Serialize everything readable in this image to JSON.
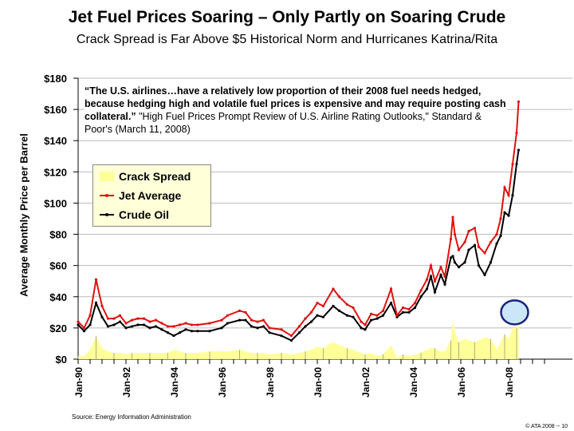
{
  "title": "Jet Fuel Prices Soaring – Only Partly on Soaring Crude",
  "subtitle": "Crack Spread is Far Above $5 Historical Norm and Hurricanes Katrina/Rita",
  "quote_bold": "“The U.S. airlines…have a relatively low proportion of their 2008 fuel needs hedged, because hedging high and volatile fuel prices is expensive and may require posting cash collateral.”",
  "quote_citation": " \"High Fuel Prices Prompt Review of U.S. Airline Rating Outlooks,\" Standard & Poor's (March 11, 2008)",
  "source": "Source: Energy Information Administration",
  "copyright": "© ATA 2008 -- 10",
  "colors": {
    "jet": "#e01010",
    "crude": "#000000",
    "crack": "#ffff99",
    "highlight": "#1a237e"
  },
  "chart_data": {
    "type": "line",
    "ylabel": "Average Monthly Price per Barrel",
    "ylim": [
      0,
      180
    ],
    "yticks": [
      "$0",
      "$20",
      "$40",
      "$60",
      "$80",
      "$100",
      "$120",
      "$140",
      "$160",
      "$180"
    ],
    "xticks": [
      "Jan-90",
      "Jan-92",
      "Jan-94",
      "Jan-96",
      "Jan-98",
      "Jan-00",
      "Jan-02",
      "Jan-04",
      "Jan-06",
      "Jan-08"
    ],
    "grid": true,
    "legend_placement": "upper-left",
    "legend": [
      "Crack Spread",
      "Jet Average",
      "Crude Oil"
    ],
    "x": [
      "1990-01",
      "1990-04",
      "1990-07",
      "1990-10",
      "1991-01",
      "1991-04",
      "1991-07",
      "1991-10",
      "1992-01",
      "1992-04",
      "1992-07",
      "1992-10",
      "1993-01",
      "1993-04",
      "1993-07",
      "1993-10",
      "1994-01",
      "1994-04",
      "1994-07",
      "1994-10",
      "1995-01",
      "1995-07",
      "1996-01",
      "1996-04",
      "1996-10",
      "1997-01",
      "1997-04",
      "1997-07",
      "1997-10",
      "1998-01",
      "1998-07",
      "1998-12",
      "1999-04",
      "1999-07",
      "1999-10",
      "2000-01",
      "2000-04",
      "2000-09",
      "2000-12",
      "2001-04",
      "2001-07",
      "2001-11",
      "2002-01",
      "2002-04",
      "2002-07",
      "2002-10",
      "2003-02",
      "2003-05",
      "2003-08",
      "2003-11",
      "2004-02",
      "2004-05",
      "2004-08",
      "2004-10",
      "2004-12",
      "2005-03",
      "2005-05",
      "2005-08",
      "2005-09",
      "2005-10",
      "2005-12",
      "2006-03",
      "2006-05",
      "2006-08",
      "2006-10",
      "2007-01",
      "2007-04",
      "2007-07",
      "2007-09",
      "2007-11",
      "2008-01",
      "2008-03",
      "2008-05",
      "2008-06"
    ],
    "series": [
      {
        "name": "Jet Average",
        "values": [
          24,
          20,
          28,
          51,
          34,
          26,
          26,
          28,
          23,
          25,
          26,
          26,
          24,
          25,
          23,
          21,
          21,
          22,
          23,
          22,
          22,
          23,
          25,
          28,
          31,
          30,
          25,
          24,
          25,
          20,
          19,
          15,
          21,
          26,
          30,
          36,
          34,
          45,
          40,
          35,
          33,
          24,
          22,
          29,
          28,
          31,
          45,
          28,
          33,
          32,
          36,
          44,
          51,
          60,
          50,
          59,
          53,
          77,
          91,
          80,
          70,
          75,
          82,
          84,
          72,
          68,
          75,
          80,
          90,
          110,
          105,
          125,
          145,
          165
        ]
      },
      {
        "name": "Crude Oil",
        "values": [
          22,
          18,
          22,
          36,
          27,
          21,
          22,
          24,
          20,
          21,
          22,
          22,
          20,
          21,
          19,
          17,
          15,
          17,
          19,
          18,
          18,
          18,
          20,
          23,
          25,
          25,
          21,
          20,
          21,
          17,
          15,
          12,
          17,
          21,
          24,
          28,
          27,
          34,
          31,
          28,
          27,
          20,
          19,
          25,
          26,
          28,
          36,
          27,
          30,
          30,
          33,
          40,
          45,
          53,
          43,
          54,
          48,
          65,
          66,
          62,
          59,
          62,
          70,
          73,
          60,
          54,
          62,
          74,
          79,
          94,
          92,
          105,
          125,
          134
        ]
      }
    ],
    "crack_spread": "Jet Average minus Crude Oil",
    "annotation": "highlight circle around 2008 crack spread"
  }
}
